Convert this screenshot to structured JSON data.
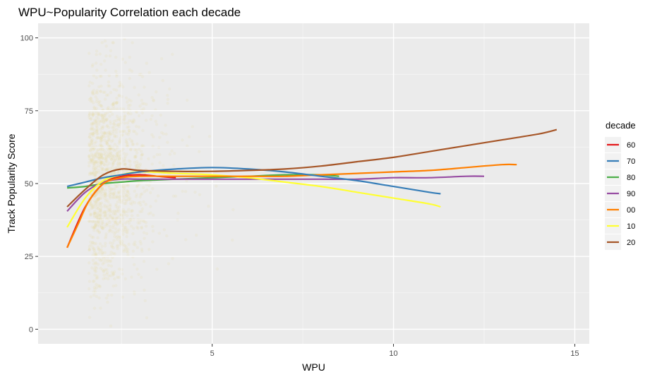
{
  "chart_data": {
    "type": "line",
    "title": "WPU~Popularity Correlation each decade",
    "xlabel": "WPU",
    "ylabel": "Track Popularity Score",
    "xlim": [
      0.2,
      15.4
    ],
    "ylim": [
      -5,
      105
    ],
    "x_ticks": [
      5,
      10,
      15
    ],
    "x_tick_labels": [
      "5",
      "10",
      "15"
    ],
    "x_minor_ticks": [
      2.5,
      7.5,
      12.5
    ],
    "y_ticks": [
      0,
      25,
      50,
      75,
      100
    ],
    "y_tick_labels": [
      "0",
      "25",
      "50",
      "75",
      "100"
    ],
    "y_minor_ticks": [
      12.5,
      37.5,
      62.5,
      87.5
    ],
    "grid": true,
    "legend_title": "decade",
    "legend_position": "right",
    "scatter_cloud": {
      "x_center": 2.2,
      "x_spread": 0.9,
      "y_center": 52,
      "y_spread": 18,
      "color": "#e6dc9c"
    },
    "series": [
      {
        "name": "60",
        "color": "#e41a1c",
        "x": [
          1.0,
          1.5,
          2.0,
          2.5,
          3.0,
          3.5,
          4.0
        ],
        "y": [
          28,
          42,
          50,
          52.5,
          53,
          52.5,
          52
        ]
      },
      {
        "name": "70",
        "color": "#377eb8",
        "x": [
          1.0,
          1.5,
          2.0,
          2.5,
          3.0,
          4.0,
          5.0,
          6.0,
          7.0,
          8.0,
          9.0,
          10.0,
          11.0,
          11.3
        ],
        "y": [
          49,
          50.5,
          52,
          53,
          54,
          55,
          55.5,
          55,
          54,
          52.5,
          51,
          49,
          47,
          46.5
        ]
      },
      {
        "name": "80",
        "color": "#4daf4a",
        "x": [
          1.0,
          1.5,
          2.0,
          2.5,
          3.0,
          4.0,
          5.0,
          6.0,
          7.0,
          8.0,
          8.5
        ],
        "y": [
          48.5,
          49,
          50,
          50.5,
          51,
          51.5,
          52,
          52.5,
          53,
          53,
          52.5
        ]
      },
      {
        "name": "90",
        "color": "#984ea3",
        "x": [
          1.0,
          1.5,
          2.0,
          2.5,
          3.0,
          4.0,
          5.0,
          6.0,
          7.0,
          8.0,
          9.0,
          10.0,
          11.0,
          12.0,
          12.5
        ],
        "y": [
          40.5,
          47,
          50.5,
          51.5,
          51.5,
          51.5,
          51.5,
          51.5,
          51.5,
          51.5,
          51.5,
          52,
          52,
          52.5,
          52.5
        ]
      },
      {
        "name": "00",
        "color": "#ff7f00",
        "x": [
          1.0,
          1.3,
          1.6,
          2.0,
          2.5,
          3.0,
          4.0,
          5.0,
          6.0,
          7.0,
          8.0,
          9.0,
          10.0,
          11.0,
          12.0,
          13.0,
          13.4
        ],
        "y": [
          28,
          36,
          44,
          50,
          52,
          52.5,
          52.5,
          52.5,
          52.5,
          52.5,
          53,
          53.5,
          54,
          54.5,
          55.5,
          56.5,
          56.5
        ]
      },
      {
        "name": "10",
        "color": "#ffff33",
        "x": [
          1.0,
          1.5,
          2.0,
          2.5,
          3.0,
          4.0,
          5.0,
          6.0,
          7.0,
          8.0,
          9.0,
          10.0,
          11.0,
          11.3
        ],
        "y": [
          35,
          45,
          51,
          53,
          54,
          53.5,
          53,
          52,
          50.5,
          49,
          47,
          45,
          43,
          42
        ]
      },
      {
        "name": "20",
        "color": "#a65628",
        "x": [
          1.0,
          1.5,
          2.0,
          2.5,
          3.0,
          4.0,
          5.0,
          6.0,
          7.0,
          8.0,
          9.0,
          10.0,
          11.0,
          12.0,
          13.0,
          14.0,
          14.5
        ],
        "y": [
          42,
          48,
          53,
          55,
          54.5,
          54.2,
          54.2,
          54.5,
          55,
          56,
          57.5,
          59,
          61,
          63,
          65,
          67,
          68.5
        ]
      }
    ]
  }
}
